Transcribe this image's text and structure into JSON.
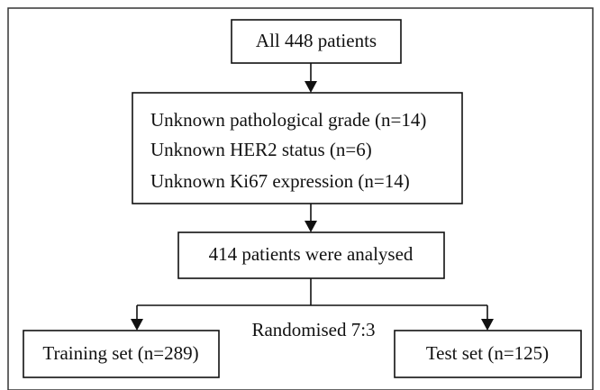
{
  "nodes": [
    {
      "label": "All 448 patients"
    },
    {
      "lines": [
        "Unknown pathological grade (n=14)",
        "Unknown HER2 status (n=6)",
        "Unknown Ki67 expression (n=14)"
      ]
    },
    {
      "label": "414 patients were analysed"
    },
    {
      "label": "Training set (n=289)"
    },
    {
      "label": "Test set (n=125)"
    }
  ],
  "split_label": "Randomised 7:3"
}
